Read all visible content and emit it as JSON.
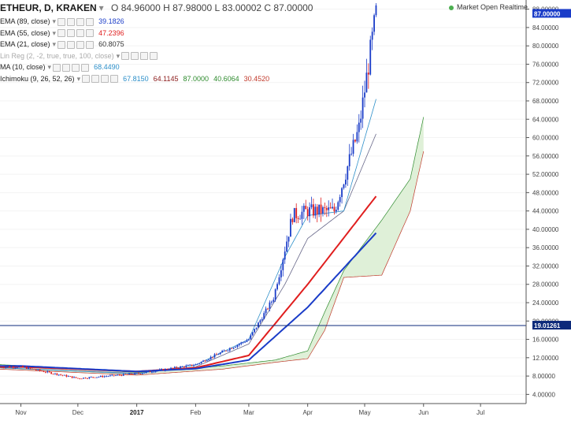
{
  "legend": {
    "symbol": "ETHEUR, D, KRAKEN",
    "ohlc": "O 84.96000  H 87.98000  L 83.00002  C 87.00000",
    "indicators": [
      {
        "name": "EMA (89, close)",
        "values": [
          "39.1826"
        ],
        "colors": [
          "#1a3cc8"
        ]
      },
      {
        "name": "EMA (55, close)",
        "values": [
          "47.2396"
        ],
        "colors": [
          "#e01e1e"
        ]
      },
      {
        "name": "EMA (21, close)",
        "values": [
          "60.8075"
        ],
        "colors": [
          "#333333"
        ]
      },
      {
        "name": "Lin Reg (2, -2, true, true, 100, close)",
        "values": [],
        "colors": []
      },
      {
        "name": "MA (10, close)",
        "values": [
          "68.4490"
        ],
        "colors": [
          "#2c8fc9"
        ]
      },
      {
        "name": "Ichimoku (9, 26, 52, 26)",
        "values": [
          "67.8150",
          "64.1145",
          "87.0000",
          "40.6064",
          "30.4520"
        ],
        "colors": [
          "#2c8fc9",
          "#8b1a1a",
          "#2e8b2e",
          "#2e8b2e",
          "#c0392b"
        ]
      }
    ]
  },
  "market_status": "Market Open  Realtime",
  "colors": {
    "up": "#1a3cc8",
    "down": "#e01e1e",
    "ema89": "#1a3cc8",
    "ema55": "#e01e1e",
    "ema21": "#666688",
    "ma10": "#2c8fc9",
    "cloud_fill": "#dff0d8",
    "span_a": "#2e8b2e",
    "span_b": "#c0392b",
    "hline": "#0d2a7a",
    "last_price_box": "#1a3cc8",
    "hline_box": "#0d2a7a"
  },
  "chart_data": {
    "type": "candlestick",
    "title": "ETHEUR, D, KRAKEN",
    "y_axis_ticks": [
      "4.00000",
      "8.00000",
      "12.00000",
      "16.00000",
      "20.00000",
      "24.00000",
      "28.00000",
      "32.00000",
      "36.00000",
      "40.00000",
      "44.00000",
      "48.00000",
      "52.00000",
      "56.00000",
      "60.00000",
      "64.00000",
      "68.00000",
      "72.00000",
      "76.00000",
      "80.00000",
      "84.00000",
      "88.00000"
    ],
    "ylim": [
      2,
      90
    ],
    "x_axis_labels": [
      "Nov",
      "Dec",
      "2017",
      "Feb",
      "Mar",
      "Apr",
      "May",
      "Jun",
      "Jul"
    ],
    "last_price_label": "87.00000",
    "horizontal_line_label": "19.01261",
    "horizontal_line_value": 19.01,
    "series": {
      "candles_close_approx": [
        {
          "date": "2016-11-01",
          "price": 10.0
        },
        {
          "date": "2016-12-01",
          "price": 7.5
        },
        {
          "date": "2017-01-01",
          "price": 8.5
        },
        {
          "date": "2017-02-01",
          "price": 10.5
        },
        {
          "date": "2017-03-01",
          "price": 16.0
        },
        {
          "date": "2017-03-14",
          "price": 25.0
        },
        {
          "date": "2017-03-24",
          "price": 43.0
        },
        {
          "date": "2017-04-01",
          "price": 44.0
        },
        {
          "date": "2017-04-15",
          "price": 44.0
        },
        {
          "date": "2017-04-28",
          "price": 62.0
        },
        {
          "date": "2017-05-07",
          "price": 87.0
        }
      ],
      "ema89_approx": [
        {
          "date": "2016-11-01",
          "price": 10.2
        },
        {
          "date": "2017-01-01",
          "price": 9.0
        },
        {
          "date": "2017-02-01",
          "price": 9.6
        },
        {
          "date": "2017-03-01",
          "price": 11.5
        },
        {
          "date": "2017-04-01",
          "price": 23.0
        },
        {
          "date": "2017-05-07",
          "price": 39.2
        }
      ],
      "ema55_approx": [
        {
          "date": "2016-11-01",
          "price": 10.0
        },
        {
          "date": "2017-01-01",
          "price": 9.0
        },
        {
          "date": "2017-02-01",
          "price": 9.8
        },
        {
          "date": "2017-03-01",
          "price": 12.5
        },
        {
          "date": "2017-04-01",
          "price": 28.0
        },
        {
          "date": "2017-05-07",
          "price": 47.2
        }
      ]
    }
  }
}
